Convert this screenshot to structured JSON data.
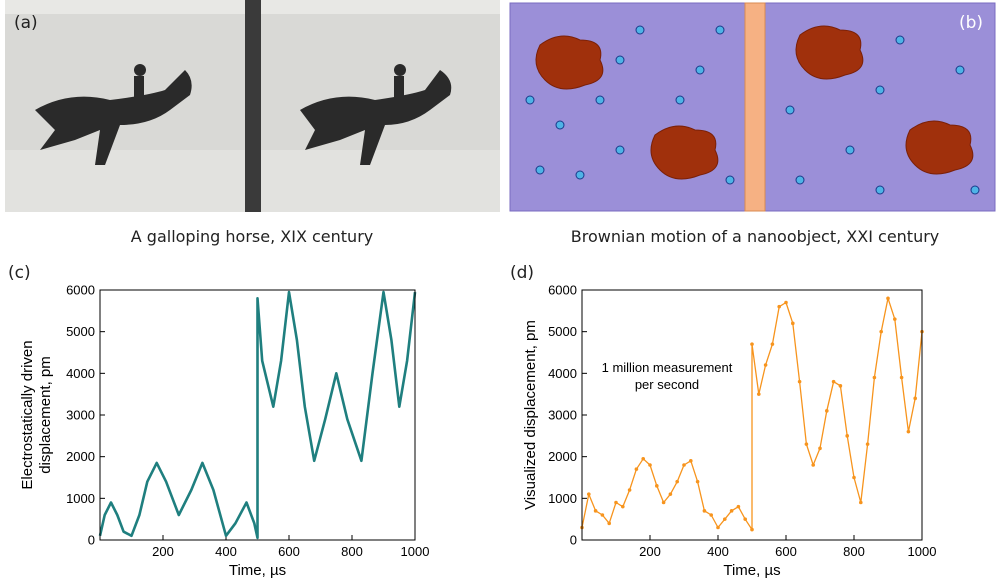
{
  "panels": [
    {
      "label": "(a)",
      "caption": "A galloping horse, XIX century"
    },
    {
      "label": "(b)",
      "caption": "Brownian motion of a nanoobject, XXI century"
    }
  ],
  "chart_data": [
    {
      "type": "line",
      "label": "(c)",
      "xlabel": "Time, µs",
      "ylabel": [
        "Electrostatically driven",
        "displacement, pm"
      ],
      "color": "#1f7f7f",
      "markers": false,
      "xlim": [
        0,
        1000
      ],
      "xticks": [
        200,
        400,
        600,
        800,
        1000
      ],
      "ylim": [
        0,
        6000
      ],
      "yticks": [
        0,
        1000,
        2000,
        3000,
        4000,
        5000,
        6000
      ],
      "x": [
        0,
        15,
        35,
        55,
        75,
        100,
        125,
        150,
        180,
        210,
        250,
        290,
        325,
        360,
        400,
        430,
        465,
        490,
        500,
        500,
        515,
        550,
        575,
        600,
        625,
        650,
        680,
        715,
        750,
        785,
        830,
        865,
        900,
        925,
        950,
        975,
        1000
      ],
      "y": [
        100,
        600,
        900,
        600,
        200,
        100,
        600,
        1400,
        1850,
        1400,
        600,
        1200,
        1850,
        1200,
        100,
        400,
        900,
        400,
        50,
        5800,
        4300,
        3200,
        4300,
        5950,
        4800,
        3200,
        1900,
        2900,
        4000,
        2900,
        1900,
        4000,
        5950,
        4800,
        3200,
        4300,
        5950
      ]
    },
    {
      "type": "line",
      "label": "(d)",
      "xlabel": "Time, µs",
      "ylabel": [
        "Visualized displacement, pm"
      ],
      "annotation": [
        "1 million measurement",
        "per second"
      ],
      "color": "#f7941d",
      "markers": true,
      "xlim": [
        0,
        1000
      ],
      "xticks": [
        200,
        400,
        600,
        800,
        1000
      ],
      "ylim": [
        0,
        6000
      ],
      "yticks": [
        0,
        1000,
        2000,
        3000,
        4000,
        5000,
        6000
      ],
      "x": [
        0,
        20,
        40,
        60,
        80,
        100,
        120,
        140,
        160,
        180,
        200,
        220,
        240,
        260,
        280,
        300,
        320,
        340,
        360,
        380,
        400,
        420,
        440,
        460,
        480,
        500,
        500,
        520,
        540,
        560,
        580,
        600,
        620,
        640,
        660,
        680,
        700,
        720,
        740,
        760,
        780,
        800,
        820,
        840,
        860,
        880,
        900,
        920,
        940,
        960,
        980,
        1000
      ],
      "y": [
        300,
        1100,
        700,
        600,
        400,
        900,
        800,
        1200,
        1700,
        1950,
        1800,
        1300,
        900,
        1100,
        1400,
        1800,
        1900,
        1400,
        700,
        600,
        300,
        500,
        700,
        800,
        500,
        250,
        4700,
        3500,
        4200,
        4700,
        5600,
        5700,
        5200,
        3800,
        2300,
        1800,
        2200,
        3100,
        3800,
        3700,
        2500,
        1500,
        900,
        2300,
        3900,
        5000,
        5800,
        5300,
        3900,
        2600,
        3400,
        5000
      ]
    }
  ]
}
